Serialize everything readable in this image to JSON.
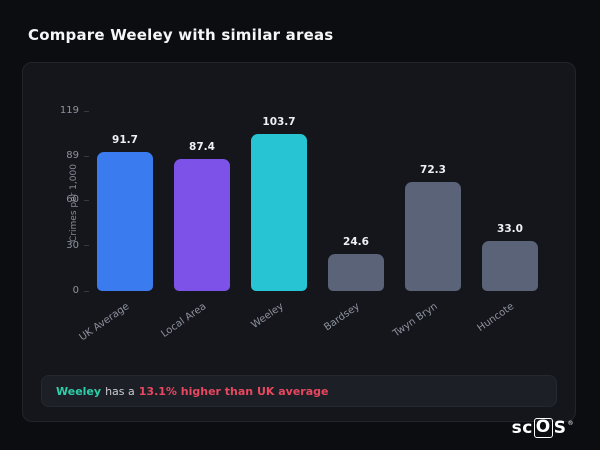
{
  "title": "Compare Weeley with similar areas",
  "chart_data": {
    "type": "bar",
    "categories": [
      "UK Average",
      "Local Area",
      "Weeley",
      "Bardsey",
      "Twyn Bryn",
      "Huncote"
    ],
    "values": [
      91.7,
      87.4,
      103.7,
      24.6,
      72.3,
      33.0
    ],
    "value_labels": [
      "91.7",
      "87.4",
      "103.7",
      "24.6",
      "72.3",
      "33.0"
    ],
    "bar_colors": [
      "#3b7bf0",
      "#7d52e8",
      "#27c5d4",
      "#5a6377",
      "#5a6377",
      "#5a6377"
    ],
    "title": "",
    "xlabel": "",
    "ylabel": "Crimes per 1,000",
    "yticks": [
      0,
      30,
      60,
      89,
      119
    ],
    "ylim": [
      0,
      119
    ],
    "grid": false,
    "legend": false
  },
  "summary": {
    "highlight": "Weeley",
    "middle": "has a",
    "stat": "13.1% higher than UK average",
    "highlight_color": "#2ecfa8",
    "stat_color": "#e8485f"
  },
  "brand": {
    "sc": "sc",
    "o": "O",
    "s": "S",
    "reg": "®"
  }
}
